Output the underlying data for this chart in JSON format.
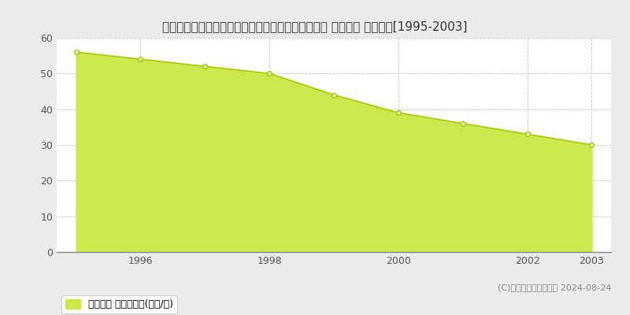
{
  "title": "北海道札幌市西区宮の沢２条４丁目３８２番１０内 地価公示 地価推移[1995-2003]",
  "years": [
    1995,
    1996,
    1997,
    1998,
    1999,
    2000,
    2001,
    2002,
    2003
  ],
  "values": [
    56,
    54,
    52,
    50,
    44,
    39,
    36,
    33,
    30
  ],
  "line_color": "#a8c800",
  "fill_color": "#cce84a",
  "marker_color": "#ffffff",
  "marker_edge_color": "#a8c800",
  "background_color": "#ebebeb",
  "plot_bg_color": "#ffffff",
  "grid_color": "#cccccc",
  "ylim": [
    0,
    60
  ],
  "yticks": [
    0,
    10,
    20,
    30,
    40,
    50,
    60
  ],
  "xticks": [
    1996,
    1998,
    2000,
    2002,
    2003
  ],
  "xlim_left": 1994.7,
  "xlim_right": 2003.3,
  "legend_label": "地価公示 平均坪単価(万円/坪)",
  "copyright_text": "(C)土地価格ドットコム 2024-08-24",
  "title_fontsize": 11,
  "axis_fontsize": 9,
  "legend_fontsize": 9
}
